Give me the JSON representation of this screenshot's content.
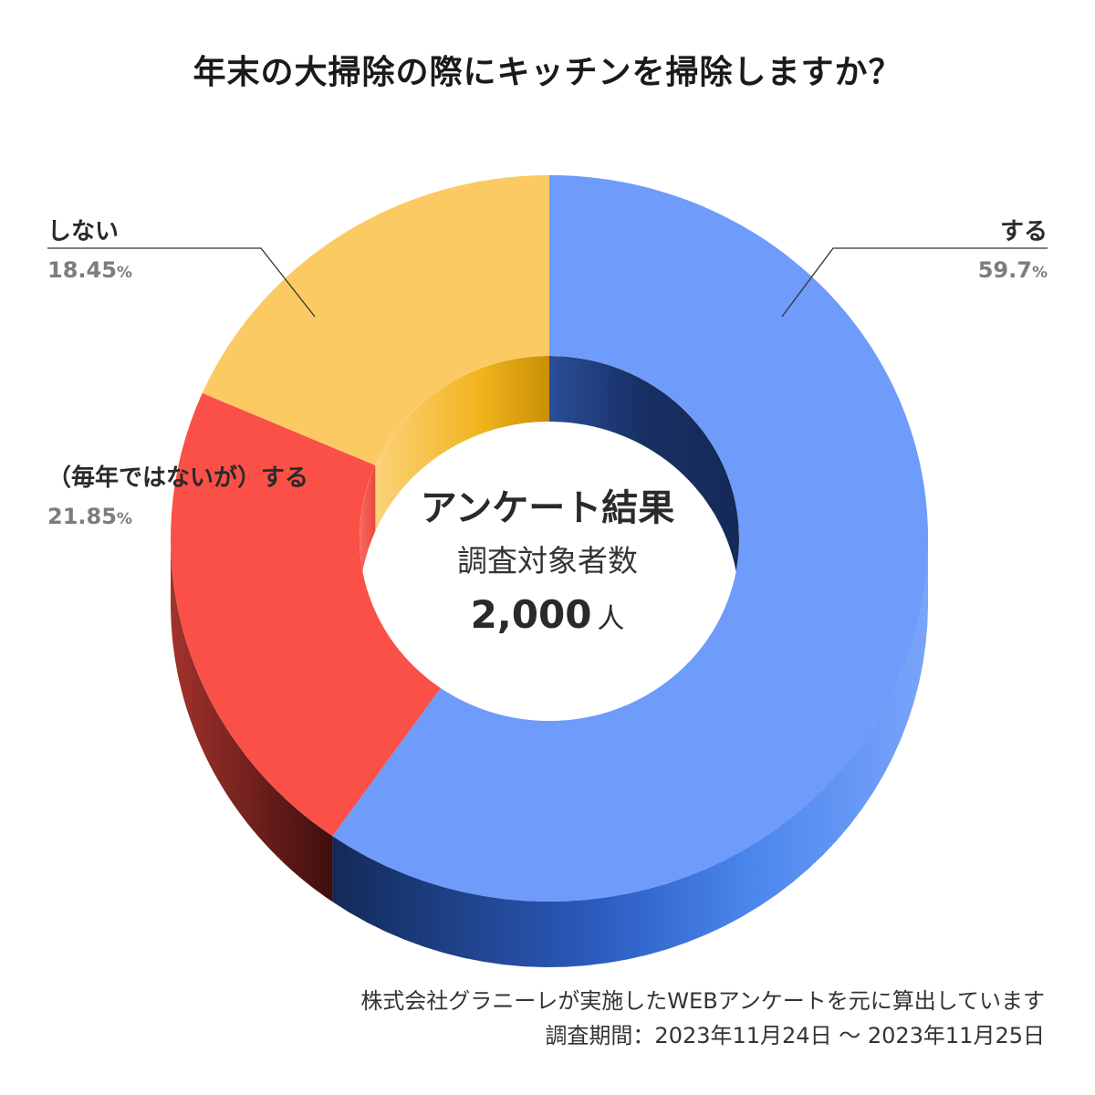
{
  "title": "年末の大掃除の際にキッチンを掃除しますか？",
  "chart_data": {
    "type": "pie",
    "title": "年末の大掃除の際にキッチンを掃除しますか？",
    "slices": [
      {
        "name": "する",
        "value": 59.7,
        "value_label": "59.7",
        "unit": "%",
        "color": "#6f9bfb",
        "side_color": "#3f7be6",
        "dark_color": "#1b2f5e"
      },
      {
        "name": "（毎年ではないが）する",
        "value": 21.85,
        "value_label": "21.85",
        "unit": "%",
        "color": "#fa5047",
        "side_color": "#8a2a22",
        "dark_color": "#4a1412"
      },
      {
        "name": "しない",
        "value": 18.45,
        "value_label": "18.45",
        "unit": "%",
        "color": "#fcca63",
        "side_color": "#e8aa12",
        "dark_color": "#6b4d08"
      }
    ],
    "center": {
      "title": "アンケート結果",
      "subtitle": "調査対象者数",
      "count": "2,000",
      "count_unit": "人"
    }
  },
  "footer": {
    "line1": "株式会社グラニーレが実施したWEBアンケートを元に算出しています",
    "line2": "調査期間：2023年11月24日 ～ 2023年11月25日"
  }
}
